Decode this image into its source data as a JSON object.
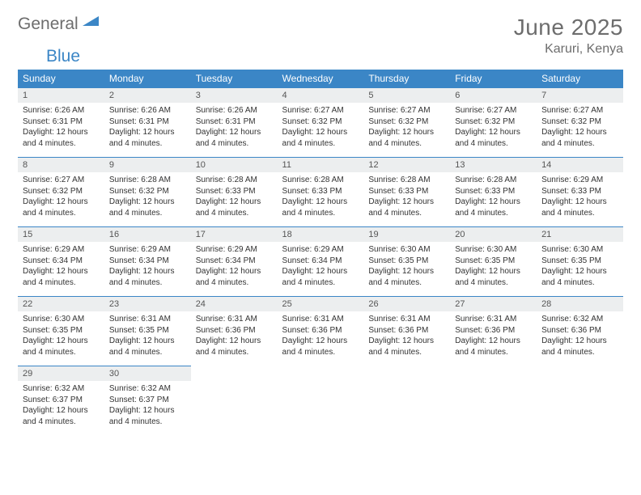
{
  "brand": {
    "part1": "General",
    "part2": "Blue"
  },
  "title": "June 2025",
  "location": "Karuri, Kenya",
  "colors": {
    "header_bg": "#3b86c6",
    "daynum_bg": "#eceeef",
    "text": "#333333",
    "muted": "#6d6d6d",
    "white": "#ffffff",
    "row_border": "#3b86c6"
  },
  "day_headers": [
    "Sunday",
    "Monday",
    "Tuesday",
    "Wednesday",
    "Thursday",
    "Friday",
    "Saturday"
  ],
  "days": [
    {
      "n": "1",
      "sunrise": "6:26 AM",
      "sunset": "6:31 PM",
      "daylight": "12 hours and 4 minutes."
    },
    {
      "n": "2",
      "sunrise": "6:26 AM",
      "sunset": "6:31 PM",
      "daylight": "12 hours and 4 minutes."
    },
    {
      "n": "3",
      "sunrise": "6:26 AM",
      "sunset": "6:31 PM",
      "daylight": "12 hours and 4 minutes."
    },
    {
      "n": "4",
      "sunrise": "6:27 AM",
      "sunset": "6:32 PM",
      "daylight": "12 hours and 4 minutes."
    },
    {
      "n": "5",
      "sunrise": "6:27 AM",
      "sunset": "6:32 PM",
      "daylight": "12 hours and 4 minutes."
    },
    {
      "n": "6",
      "sunrise": "6:27 AM",
      "sunset": "6:32 PM",
      "daylight": "12 hours and 4 minutes."
    },
    {
      "n": "7",
      "sunrise": "6:27 AM",
      "sunset": "6:32 PM",
      "daylight": "12 hours and 4 minutes."
    },
    {
      "n": "8",
      "sunrise": "6:27 AM",
      "sunset": "6:32 PM",
      "daylight": "12 hours and 4 minutes."
    },
    {
      "n": "9",
      "sunrise": "6:28 AM",
      "sunset": "6:32 PM",
      "daylight": "12 hours and 4 minutes."
    },
    {
      "n": "10",
      "sunrise": "6:28 AM",
      "sunset": "6:33 PM",
      "daylight": "12 hours and 4 minutes."
    },
    {
      "n": "11",
      "sunrise": "6:28 AM",
      "sunset": "6:33 PM",
      "daylight": "12 hours and 4 minutes."
    },
    {
      "n": "12",
      "sunrise": "6:28 AM",
      "sunset": "6:33 PM",
      "daylight": "12 hours and 4 minutes."
    },
    {
      "n": "13",
      "sunrise": "6:28 AM",
      "sunset": "6:33 PM",
      "daylight": "12 hours and 4 minutes."
    },
    {
      "n": "14",
      "sunrise": "6:29 AM",
      "sunset": "6:33 PM",
      "daylight": "12 hours and 4 minutes."
    },
    {
      "n": "15",
      "sunrise": "6:29 AM",
      "sunset": "6:34 PM",
      "daylight": "12 hours and 4 minutes."
    },
    {
      "n": "16",
      "sunrise": "6:29 AM",
      "sunset": "6:34 PM",
      "daylight": "12 hours and 4 minutes."
    },
    {
      "n": "17",
      "sunrise": "6:29 AM",
      "sunset": "6:34 PM",
      "daylight": "12 hours and 4 minutes."
    },
    {
      "n": "18",
      "sunrise": "6:29 AM",
      "sunset": "6:34 PM",
      "daylight": "12 hours and 4 minutes."
    },
    {
      "n": "19",
      "sunrise": "6:30 AM",
      "sunset": "6:35 PM",
      "daylight": "12 hours and 4 minutes."
    },
    {
      "n": "20",
      "sunrise": "6:30 AM",
      "sunset": "6:35 PM",
      "daylight": "12 hours and 4 minutes."
    },
    {
      "n": "21",
      "sunrise": "6:30 AM",
      "sunset": "6:35 PM",
      "daylight": "12 hours and 4 minutes."
    },
    {
      "n": "22",
      "sunrise": "6:30 AM",
      "sunset": "6:35 PM",
      "daylight": "12 hours and 4 minutes."
    },
    {
      "n": "23",
      "sunrise": "6:31 AM",
      "sunset": "6:35 PM",
      "daylight": "12 hours and 4 minutes."
    },
    {
      "n": "24",
      "sunrise": "6:31 AM",
      "sunset": "6:36 PM",
      "daylight": "12 hours and 4 minutes."
    },
    {
      "n": "25",
      "sunrise": "6:31 AM",
      "sunset": "6:36 PM",
      "daylight": "12 hours and 4 minutes."
    },
    {
      "n": "26",
      "sunrise": "6:31 AM",
      "sunset": "6:36 PM",
      "daylight": "12 hours and 4 minutes."
    },
    {
      "n": "27",
      "sunrise": "6:31 AM",
      "sunset": "6:36 PM",
      "daylight": "12 hours and 4 minutes."
    },
    {
      "n": "28",
      "sunrise": "6:32 AM",
      "sunset": "6:36 PM",
      "daylight": "12 hours and 4 minutes."
    },
    {
      "n": "29",
      "sunrise": "6:32 AM",
      "sunset": "6:37 PM",
      "daylight": "12 hours and 4 minutes."
    },
    {
      "n": "30",
      "sunrise": "6:32 AM",
      "sunset": "6:37 PM",
      "daylight": "12 hours and 4 minutes."
    }
  ],
  "labels": {
    "sunrise": "Sunrise: ",
    "sunset": "Sunset: ",
    "daylight": "Daylight: "
  },
  "layout": {
    "first_day_offset": 0,
    "total_cells": 35
  }
}
